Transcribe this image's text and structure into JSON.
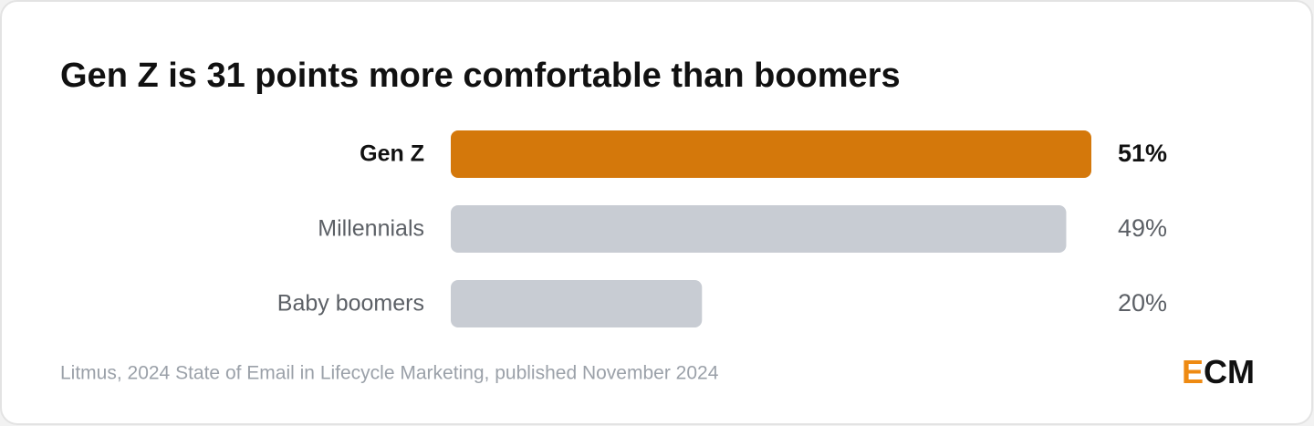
{
  "chart_data": {
    "type": "hbar",
    "title": "Gen Z is 31 points more comfortable than boomers",
    "categories": [
      "Gen Z",
      "Millennials",
      "Baby boomers"
    ],
    "values": [
      51,
      49,
      20
    ],
    "value_labels": [
      "51%",
      "49%",
      "20%"
    ],
    "colors": [
      "#d4780b",
      "#c8ccd3",
      "#c8ccd3"
    ],
    "highlight": 0,
    "xlim": [
      0,
      51
    ],
    "source": "Litmus, 2024 State of Email in Lifecycle Marketing, published November 2024",
    "logo": {
      "accent": "E",
      "rest": "CM",
      "accent_color": "#ee8a12"
    }
  }
}
